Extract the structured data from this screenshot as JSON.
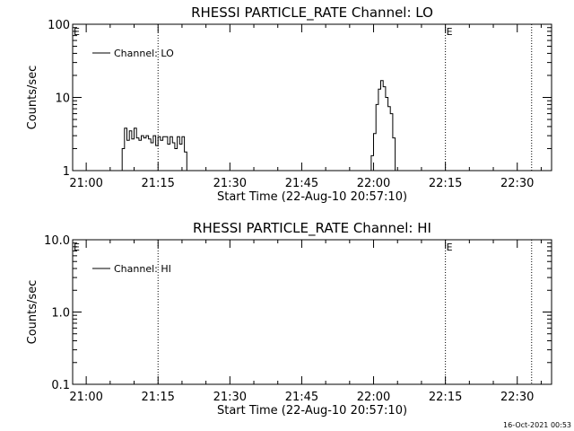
{
  "footer": {
    "timestamp": "16-Oct-2021 00:53"
  },
  "chart_data": [
    {
      "type": "line",
      "title": "RHESSI PARTICLE_RATE Channel: LO",
      "xlabel": "Start Time (22-Aug-10 20:57:10)",
      "ylabel": "Counts/sec",
      "y_scale": "log",
      "ylim": [
        1,
        100
      ],
      "y_ticks": [
        {
          "value": 1,
          "label": "1"
        },
        {
          "value": 10,
          "label": "10"
        },
        {
          "value": 100,
          "label": "100"
        }
      ],
      "xlim": [
        "20:57:10",
        "22:37:10"
      ],
      "x_ticks": [
        "21:00",
        "21:15",
        "21:30",
        "21:45",
        "22:00",
        "22:15",
        "22:30"
      ],
      "grid": false,
      "legend": {
        "placement": "top-left",
        "entries": [
          "Channel: LO"
        ]
      },
      "markers": [
        {
          "time": "21:15",
          "label": ""
        },
        {
          "time": "22:15",
          "label": "E"
        },
        {
          "time": "22:33",
          "label": ""
        }
      ],
      "edge_label": "E",
      "series": [
        {
          "name": "Channel: LO",
          "x": [
            "21:07:00",
            "21:07:30",
            "21:08:00",
            "21:08:30",
            "21:09:00",
            "21:09:30",
            "21:10:00",
            "21:10:30",
            "21:11:00",
            "21:11:30",
            "21:12:00",
            "21:12:30",
            "21:13:00",
            "21:13:30",
            "21:14:00",
            "21:14:30",
            "21:15:00",
            "21:15:30",
            "21:16:00",
            "21:16:30",
            "21:17:00",
            "21:17:30",
            "21:18:00",
            "21:18:30",
            "21:19:00",
            "21:19:30",
            "21:20:00",
            "21:20:30",
            "21:21:00",
            "21:59:00",
            "21:59:30",
            "22:00:00",
            "22:00:30",
            "22:01:00",
            "22:01:30",
            "22:02:00",
            "22:02:30",
            "22:03:00",
            "22:03:30",
            "22:04:00",
            "22:04:30"
          ],
          "y": [
            1.0,
            2.0,
            3.8,
            2.6,
            3.5,
            2.7,
            3.8,
            2.8,
            2.6,
            3.0,
            2.8,
            3.0,
            2.7,
            2.4,
            3.0,
            2.2,
            2.9,
            2.6,
            2.9,
            2.9,
            2.3,
            2.9,
            2.4,
            2.0,
            2.9,
            2.3,
            2.9,
            1.8,
            1.0,
            1.0,
            1.6,
            3.2,
            8.0,
            13.0,
            17.0,
            14.0,
            10.0,
            7.5,
            6.0,
            2.8,
            1.0
          ]
        }
      ]
    },
    {
      "type": "line",
      "title": "RHESSI PARTICLE_RATE Channel: HI",
      "xlabel": "Start Time (22-Aug-10 20:57:10)",
      "ylabel": "Counts/sec",
      "y_scale": "log",
      "ylim": [
        0.1,
        10
      ],
      "y_ticks": [
        {
          "value": 0.1,
          "label": "0.1"
        },
        {
          "value": 1,
          "label": "1.0"
        },
        {
          "value": 10,
          "label": "10.0"
        }
      ],
      "xlim": [
        "20:57:10",
        "22:37:10"
      ],
      "x_ticks": [
        "21:00",
        "21:15",
        "21:30",
        "21:45",
        "22:00",
        "22:15",
        "22:30"
      ],
      "grid": false,
      "legend": {
        "placement": "top-left",
        "entries": [
          "Channel: HI"
        ]
      },
      "markers": [
        {
          "time": "21:15",
          "label": ""
        },
        {
          "time": "22:15",
          "label": "E"
        },
        {
          "time": "22:33",
          "label": ""
        }
      ],
      "edge_label": "E",
      "series": [
        {
          "name": "Channel: HI",
          "x": [],
          "y": []
        }
      ]
    }
  ]
}
